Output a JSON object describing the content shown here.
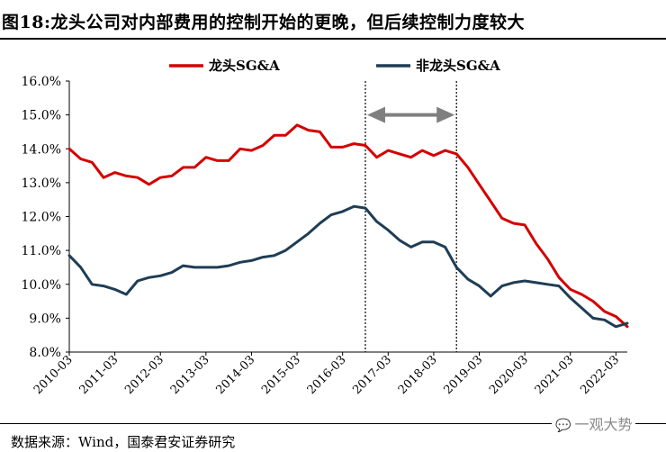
{
  "header": {
    "title": "图18:龙头公司对内部费用的控制开始的更晚，但后续控制力度较大"
  },
  "footer": {
    "source": "数据来源：Wind，国泰君安证券研究",
    "watermark": "一观大势",
    "watermark_icon": "wechat-bubble-icon"
  },
  "chart_data": {
    "type": "line",
    "y_tick_labels": [
      "8.0%",
      "9.0%",
      "10.0%",
      "11.0%",
      "12.0%",
      "13.0%",
      "14.0%",
      "15.0%",
      "16.0%"
    ],
    "ylim": [
      8.0,
      16.0
    ],
    "x_tick_labels": [
      "2010-03",
      "2011-03",
      "2012-03",
      "2013-03",
      "2014-03",
      "2015-03",
      "2016-03",
      "2017-03",
      "2018-03",
      "2019-03",
      "2020-03",
      "2021-03",
      "2022-03"
    ],
    "x_start": "2010-03",
    "x_end": "2022-06",
    "grid": false,
    "legend_position": "top",
    "annotations": {
      "vertical_lines": [
        "2016-09",
        "2018-09"
      ],
      "arrow": {
        "from": "2016-09",
        "to": "2018-09",
        "y": 15.0,
        "double_headed": true
      }
    },
    "series": [
      {
        "name": "龙头SG&A",
        "color": "#d40000",
        "values": [
          [
            "2010-03",
            14.0
          ],
          [
            "2010-06",
            13.7
          ],
          [
            "2010-09",
            13.6
          ],
          [
            "2010-12",
            13.15
          ],
          [
            "2011-03",
            13.3
          ],
          [
            "2011-06",
            13.2
          ],
          [
            "2011-09",
            13.15
          ],
          [
            "2011-12",
            12.95
          ],
          [
            "2012-03",
            13.15
          ],
          [
            "2012-06",
            13.2
          ],
          [
            "2012-09",
            13.45
          ],
          [
            "2012-12",
            13.45
          ],
          [
            "2013-03",
            13.75
          ],
          [
            "2013-06",
            13.65
          ],
          [
            "2013-09",
            13.65
          ],
          [
            "2013-12",
            14.0
          ],
          [
            "2014-03",
            13.95
          ],
          [
            "2014-06",
            14.1
          ],
          [
            "2014-09",
            14.4
          ],
          [
            "2014-12",
            14.4
          ],
          [
            "2015-03",
            14.7
          ],
          [
            "2015-06",
            14.55
          ],
          [
            "2015-09",
            14.5
          ],
          [
            "2015-12",
            14.05
          ],
          [
            "2016-03",
            14.05
          ],
          [
            "2016-06",
            14.15
          ],
          [
            "2016-09",
            14.1
          ],
          [
            "2016-12",
            13.75
          ],
          [
            "2017-03",
            13.95
          ],
          [
            "2017-06",
            13.85
          ],
          [
            "2017-09",
            13.75
          ],
          [
            "2017-12",
            13.95
          ],
          [
            "2018-03",
            13.8
          ],
          [
            "2018-06",
            13.95
          ],
          [
            "2018-09",
            13.85
          ],
          [
            "2018-12",
            13.45
          ],
          [
            "2019-03",
            12.95
          ],
          [
            "2019-06",
            12.45
          ],
          [
            "2019-09",
            11.95
          ],
          [
            "2019-12",
            11.8
          ],
          [
            "2020-03",
            11.75
          ],
          [
            "2020-06",
            11.2
          ],
          [
            "2020-09",
            10.75
          ],
          [
            "2020-12",
            10.2
          ],
          [
            "2021-03",
            9.85
          ],
          [
            "2021-06",
            9.7
          ],
          [
            "2021-09",
            9.5
          ],
          [
            "2021-12",
            9.2
          ],
          [
            "2022-03",
            9.05
          ],
          [
            "2022-06",
            8.75
          ]
        ]
      },
      {
        "name": "非龙头SG&A",
        "color": "#1f3d55",
        "values": [
          [
            "2010-03",
            10.85
          ],
          [
            "2010-06",
            10.5
          ],
          [
            "2010-09",
            10.0
          ],
          [
            "2010-12",
            9.95
          ],
          [
            "2011-03",
            9.85
          ],
          [
            "2011-06",
            9.7
          ],
          [
            "2011-09",
            10.1
          ],
          [
            "2011-12",
            10.2
          ],
          [
            "2012-03",
            10.25
          ],
          [
            "2012-06",
            10.35
          ],
          [
            "2012-09",
            10.55
          ],
          [
            "2012-12",
            10.5
          ],
          [
            "2013-03",
            10.5
          ],
          [
            "2013-06",
            10.5
          ],
          [
            "2013-09",
            10.55
          ],
          [
            "2013-12",
            10.65
          ],
          [
            "2014-03",
            10.7
          ],
          [
            "2014-06",
            10.8
          ],
          [
            "2014-09",
            10.85
          ],
          [
            "2014-12",
            11.0
          ],
          [
            "2015-03",
            11.25
          ],
          [
            "2015-06",
            11.5
          ],
          [
            "2015-09",
            11.8
          ],
          [
            "2015-12",
            12.05
          ],
          [
            "2016-03",
            12.15
          ],
          [
            "2016-06",
            12.3
          ],
          [
            "2016-09",
            12.25
          ],
          [
            "2016-12",
            11.85
          ],
          [
            "2017-03",
            11.6
          ],
          [
            "2017-06",
            11.3
          ],
          [
            "2017-09",
            11.1
          ],
          [
            "2017-12",
            11.25
          ],
          [
            "2018-03",
            11.25
          ],
          [
            "2018-06",
            11.1
          ],
          [
            "2018-09",
            10.5
          ],
          [
            "2018-12",
            10.15
          ],
          [
            "2019-03",
            9.95
          ],
          [
            "2019-06",
            9.65
          ],
          [
            "2019-09",
            9.95
          ],
          [
            "2019-12",
            10.05
          ],
          [
            "2020-03",
            10.1
          ],
          [
            "2020-06",
            10.05
          ],
          [
            "2020-09",
            10.0
          ],
          [
            "2020-12",
            9.95
          ],
          [
            "2021-03",
            9.6
          ],
          [
            "2021-06",
            9.3
          ],
          [
            "2021-09",
            9.0
          ],
          [
            "2021-12",
            8.95
          ],
          [
            "2022-03",
            8.75
          ],
          [
            "2022-06",
            8.85
          ]
        ]
      }
    ]
  }
}
